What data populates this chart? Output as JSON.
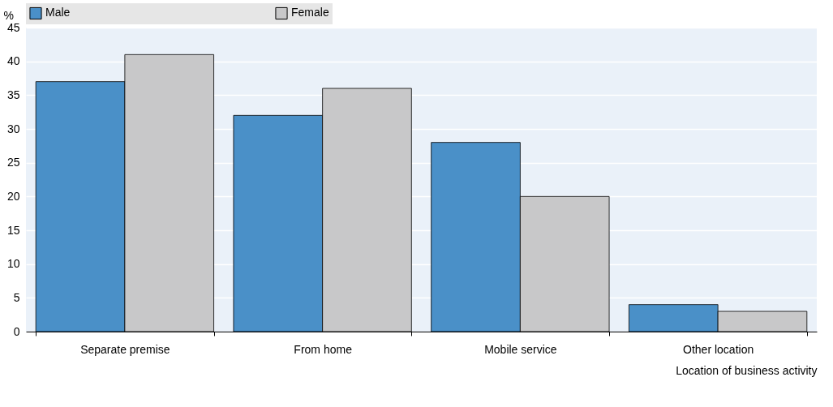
{
  "chart_data": {
    "type": "bar",
    "ylabel": "%",
    "xlabel": "Location of business activity",
    "categories": [
      "Separate premise",
      "From home",
      "Mobile service",
      "Other location"
    ],
    "series": [
      {
        "name": "Male",
        "color": "#4a90c8",
        "values": [
          37,
          32,
          28,
          4
        ]
      },
      {
        "name": "Female",
        "color": "#c8c8c9",
        "values": [
          41,
          36,
          20,
          3
        ]
      }
    ],
    "ylim": [
      0,
      45
    ],
    "yticks": [
      0,
      5,
      10,
      15,
      20,
      25,
      30,
      35,
      40,
      45
    ],
    "grid": "y",
    "legend": "top"
  }
}
